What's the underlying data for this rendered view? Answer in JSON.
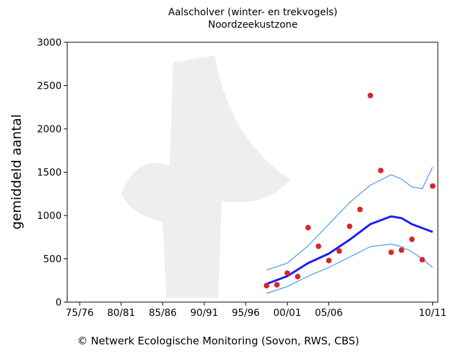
{
  "chart_data": {
    "type": "scatter",
    "title": "Aalscholver (winter- en trekvogels)",
    "subtitle": "Noordzeekustzone",
    "y_label": "gemiddeld aantal",
    "footer": "© Netwerk Ecologische Monitoring (Sovon, RWS, CBS)",
    "xlim": [
      1974.8,
      2010.5
    ],
    "ylim": [
      0,
      3000
    ],
    "xticks": [
      {
        "value": 1976,
        "label": "75/76"
      },
      {
        "value": 1980,
        "label": "80/81"
      },
      {
        "value": 1984,
        "label": "85/86"
      },
      {
        "value": 1988,
        "label": "90/91"
      },
      {
        "value": 1992,
        "label": "95/96"
      },
      {
        "value": 1996,
        "label": "00/01"
      },
      {
        "value": 2000,
        "label": "05/06"
      },
      {
        "value": 2010,
        "label": "10/11"
      }
    ],
    "yticks": [
      0,
      500,
      1000,
      1500,
      2000,
      2500,
      3000
    ],
    "points": {
      "color": "#d8262b",
      "x": [
        1994,
        1995,
        1996,
        1997,
        1998,
        1999,
        2000,
        2001,
        2002,
        2003,
        2004,
        2005,
        2006,
        2007,
        2008,
        2009,
        2010
      ],
      "values": [
        190,
        200,
        335,
        295,
        860,
        645,
        480,
        590,
        875,
        1070,
        2385,
        1520,
        575,
        600,
        725,
        490,
        1340
      ]
    },
    "trend": {
      "color": "#1a1aff",
      "x": [
        1994,
        1996,
        1998,
        2000,
        2002,
        2004,
        2006,
        2007,
        2008,
        2010
      ],
      "values": [
        210,
        300,
        450,
        560,
        720,
        900,
        990,
        970,
        900,
        810
      ]
    },
    "upper": {
      "color": "#6aa8f0",
      "x": [
        1994,
        1996,
        1998,
        2000,
        2002,
        2004,
        2006,
        2007,
        2008,
        2009,
        2010
      ],
      "values": [
        370,
        450,
        650,
        900,
        1150,
        1350,
        1470,
        1420,
        1330,
        1310,
        1560
      ]
    },
    "lower": {
      "color": "#6aa8f0",
      "x": [
        1994,
        1996,
        1998,
        2000,
        2002,
        2004,
        2006,
        2007,
        2008,
        2009,
        2010
      ],
      "values": [
        100,
        180,
        300,
        400,
        520,
        640,
        670,
        640,
        580,
        500,
        400
      ]
    }
  }
}
